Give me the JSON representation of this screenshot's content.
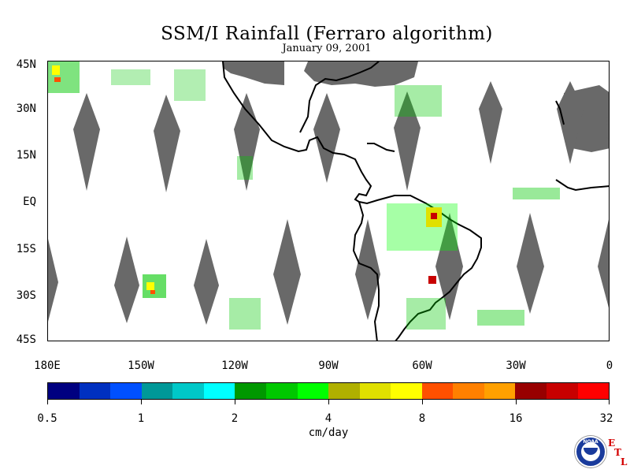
{
  "title": "SSM/I Rainfall (Ferraro algorithm)",
  "date": "January 09, 2001",
  "map": {
    "lat_labels": [
      "45N",
      "30N",
      "15N",
      "EQ",
      "15S",
      "30S",
      "45S"
    ],
    "lon_labels": [
      "180E",
      "150W",
      "120W",
      "90W",
      "60W",
      "30W",
      "0"
    ],
    "lat_range": [
      -45,
      45
    ],
    "lon_range": [
      -180,
      0
    ],
    "colors": {
      "land_outline": "#000000",
      "no_data_gap": "#696969",
      "ocean_background": "#ffffff"
    }
  },
  "colorbar": {
    "tick_labels": [
      "0.5",
      "1",
      "2",
      "4",
      "8",
      "16",
      "32"
    ],
    "unit": "cm/day",
    "colors": [
      "#000080",
      "#0030c0",
      "#0050ff",
      "#009898",
      "#00c8c8",
      "#00ffff",
      "#009800",
      "#00c800",
      "#00ff00",
      "#b0b000",
      "#e0e000",
      "#ffff00",
      "#ff5000",
      "#ff8000",
      "#ffa000",
      "#980000",
      "#c80000",
      "#ff0000"
    ]
  },
  "logos": {
    "noaa_text": "NOAA",
    "etl_letters": [
      "E",
      "T",
      "L"
    ]
  }
}
